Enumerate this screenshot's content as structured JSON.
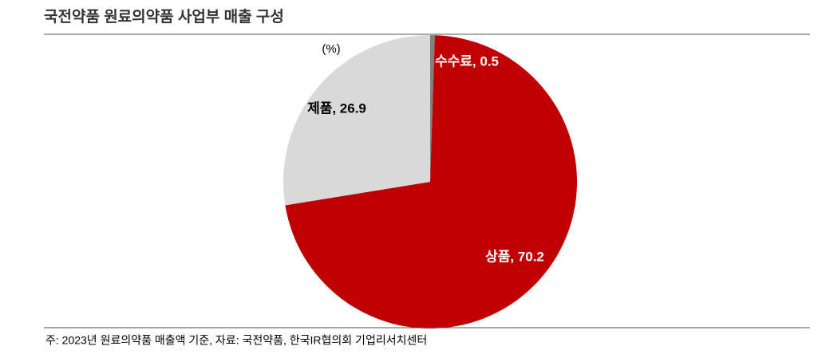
{
  "chart_data": {
    "type": "pie",
    "title": "국전약품 원료의약품 사업부 매출 구성",
    "unit_note": "(%)",
    "footnote": "주: 2023년 원료의약품 매출액 기준, 자료: 국전약품, 한국IR협의회 기업리서치센터",
    "categories": [
      "수수료",
      "상품",
      "제품"
    ],
    "values": [
      0.5,
      70.2,
      26.9
    ],
    "value_labels": [
      "수수료, 0.5",
      "상품, 70.2",
      "제품, 26.9"
    ],
    "colors": [
      "#7f7f7f",
      "#c00000",
      "#d9d9d9"
    ]
  }
}
